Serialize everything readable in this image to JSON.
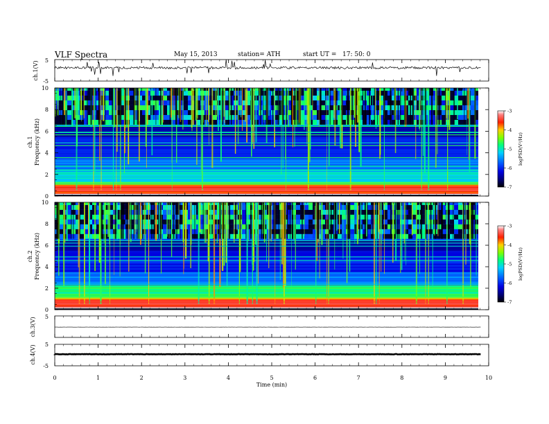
{
  "header": {
    "title": "VLF  Spectra",
    "date": "May 15, 2013",
    "station": "station= ATH",
    "start_label": "start  UT  =",
    "start_time": "17: 50: 0"
  },
  "colors": {
    "spectrogram_scale": [
      "#000000",
      "#00007a",
      "#0000e0",
      "#0040ff",
      "#00c0ff",
      "#00ffd0",
      "#40ff40",
      "#e0ff00",
      "#ffb000",
      "#ff2000",
      "#ff6060",
      "#ffffff"
    ],
    "trace": "#000000"
  },
  "chart_data": [
    {
      "id": "ch1-waveform",
      "type": "line",
      "ylabel": "ch.1(V)",
      "ylim": [
        -5,
        5
      ],
      "yticks": [
        "5",
        "-5"
      ],
      "description_level": 1.2,
      "xlim": [
        0,
        10
      ]
    },
    {
      "id": "ch1-spectrogram",
      "type": "heatmap",
      "ylabel": "ch.1\nFrequency  (kHz)",
      "ylabel_lines": [
        "ch.1",
        "Frequency  (kHz)"
      ],
      "ylim": [
        0,
        10
      ],
      "yticks": [
        "10",
        "8",
        "6",
        "4",
        "2",
        "0"
      ],
      "xlim": [
        0,
        10
      ],
      "data_end_min": 9.82,
      "colorbar": {
        "label": "logPSD(V²/Hz)",
        "range": [
          -7,
          -3
        ],
        "ticks": [
          "-3",
          "-4",
          "-5",
          "-6",
          "-7"
        ]
      }
    },
    {
      "id": "ch2-spectrogram",
      "type": "heatmap",
      "ylabel_lines": [
        "ch.2",
        "Frequency  (kHz)"
      ],
      "ylim": [
        0,
        10
      ],
      "yticks": [
        "10",
        "8",
        "6",
        "4",
        "2",
        "0"
      ],
      "xlim": [
        0,
        10
      ],
      "data_end_min": 9.82,
      "colorbar": {
        "label": "logPSD(V²/Hz)",
        "range": [
          -7,
          -3
        ],
        "ticks": [
          "-3",
          "-4",
          "-5",
          "-6",
          "-7"
        ]
      }
    },
    {
      "id": "ch3-waveform",
      "type": "line",
      "ylabel": "ch.3(V)",
      "ylim": [
        -5,
        5
      ],
      "yticks": [
        "5"
      ],
      "xlim": [
        0,
        10
      ]
    },
    {
      "id": "ch4-waveform",
      "type": "line",
      "ylabel": "ch.4(V)",
      "ylim": [
        -5,
        5
      ],
      "yticks": [
        "5",
        "-5"
      ],
      "xlim": [
        0,
        10
      ]
    }
  ],
  "xaxis": {
    "label": "Time  (min)",
    "ticks": [
      "0",
      "1",
      "2",
      "3",
      "4",
      "5",
      "6",
      "7",
      "8",
      "9",
      "10"
    ]
  }
}
